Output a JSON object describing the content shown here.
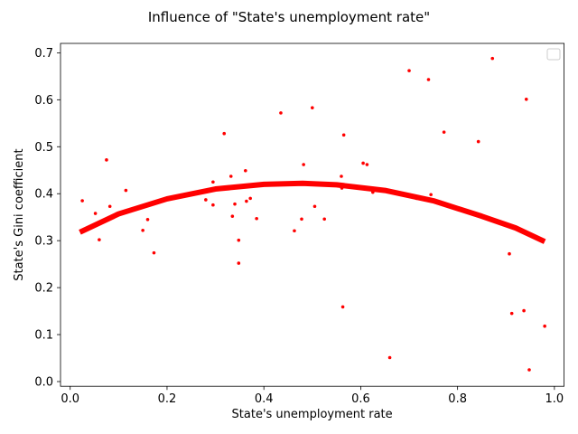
{
  "chart_data": {
    "type": "scatter",
    "title": "Influence of \"State's unemployment rate\"",
    "xlabel": "State's unemployment rate",
    "ylabel": "State's Gini coefficient",
    "xlim": [
      -0.02,
      1.02
    ],
    "ylim": [
      -0.01,
      0.72
    ],
    "xticks": [
      0.0,
      0.2,
      0.4,
      0.6,
      0.8,
      1.0
    ],
    "xtick_labels": [
      "0.0",
      "0.2",
      "0.4",
      "0.6",
      "0.8",
      "1.0"
    ],
    "yticks": [
      0.0,
      0.1,
      0.2,
      0.3,
      0.4,
      0.5,
      0.6,
      0.7
    ],
    "ytick_labels": [
      "0.0",
      "0.1",
      "0.2",
      "0.3",
      "0.4",
      "0.5",
      "0.6",
      "0.7"
    ],
    "grid": false,
    "legend": "upper right (empty)",
    "series": [
      {
        "type": "scatter",
        "color": "#ff0000",
        "points": [
          [
            0.025,
            0.385
          ],
          [
            0.052,
            0.358
          ],
          [
            0.06,
            0.302
          ],
          [
            0.075,
            0.472
          ],
          [
            0.082,
            0.373
          ],
          [
            0.115,
            0.407
          ],
          [
            0.15,
            0.322
          ],
          [
            0.16,
            0.345
          ],
          [
            0.173,
            0.274
          ],
          [
            0.28,
            0.387
          ],
          [
            0.295,
            0.376
          ],
          [
            0.295,
            0.425
          ],
          [
            0.318,
            0.528
          ],
          [
            0.332,
            0.437
          ],
          [
            0.335,
            0.352
          ],
          [
            0.34,
            0.378
          ],
          [
            0.348,
            0.301
          ],
          [
            0.348,
            0.252
          ],
          [
            0.362,
            0.449
          ],
          [
            0.364,
            0.384
          ],
          [
            0.372,
            0.39
          ],
          [
            0.385,
            0.347
          ],
          [
            0.435,
            0.572
          ],
          [
            0.463,
            0.321
          ],
          [
            0.478,
            0.346
          ],
          [
            0.482,
            0.462
          ],
          [
            0.5,
            0.583
          ],
          [
            0.505,
            0.373
          ],
          [
            0.525,
            0.346
          ],
          [
            0.56,
            0.437
          ],
          [
            0.561,
            0.412
          ],
          [
            0.563,
            0.159
          ],
          [
            0.565,
            0.525
          ],
          [
            0.605,
            0.465
          ],
          [
            0.613,
            0.462
          ],
          [
            0.625,
            0.403
          ],
          [
            0.66,
            0.051
          ],
          [
            0.7,
            0.662
          ],
          [
            0.715,
            0.39
          ],
          [
            0.74,
            0.643
          ],
          [
            0.745,
            0.398
          ],
          [
            0.772,
            0.531
          ],
          [
            0.843,
            0.511
          ],
          [
            0.872,
            0.688
          ],
          [
            0.907,
            0.272
          ],
          [
            0.912,
            0.145
          ],
          [
            0.937,
            0.151
          ],
          [
            0.942,
            0.601
          ],
          [
            0.948,
            0.025
          ],
          [
            0.98,
            0.118
          ]
        ]
      },
      {
        "type": "line",
        "color": "#ff0000",
        "points": [
          [
            0.02,
            0.318
          ],
          [
            0.1,
            0.357
          ],
          [
            0.2,
            0.389
          ],
          [
            0.3,
            0.41
          ],
          [
            0.4,
            0.42
          ],
          [
            0.48,
            0.422
          ],
          [
            0.55,
            0.419
          ],
          [
            0.65,
            0.407
          ],
          [
            0.75,
            0.385
          ],
          [
            0.85,
            0.352
          ],
          [
            0.92,
            0.327
          ],
          [
            0.98,
            0.298
          ]
        ]
      }
    ]
  }
}
